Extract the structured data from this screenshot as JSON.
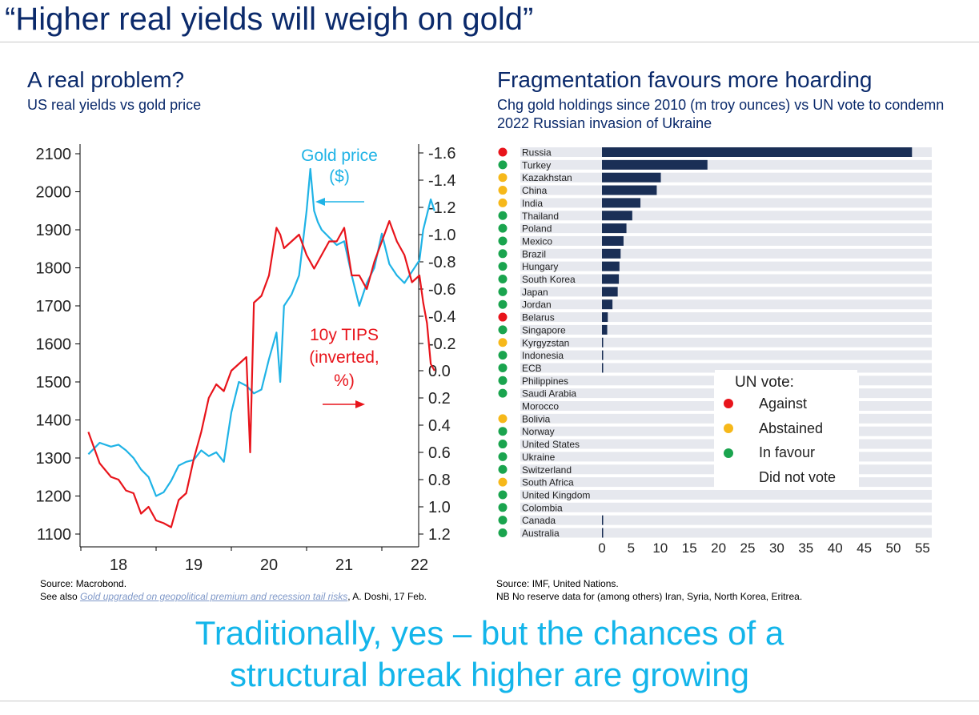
{
  "title": "“Higher real yields will weigh on gold”",
  "left": {
    "heading": "A real problem?",
    "subheading": "US real yields vs gold price",
    "source_line1": "Source: Macrobond.",
    "source_see_also": "See also ",
    "source_link": "Gold upgraded on geopolitical premium and recession tail risks",
    "source_tail": ", A. Doshi, 17 Feb."
  },
  "right": {
    "heading": "Fragmentation favours more hoarding",
    "subheading": "Chg gold holdings since 2010 (m troy ounces) vs UN vote to condemn 2022 Russian invasion of Ukraine",
    "source_line1": "Source: IMF, United Nations.",
    "source_line2": "NB No reserve data for (among others) Iran, Syria, North Korea, Eritrea."
  },
  "bottom_line1": "Traditionally, yes – but the chances of a",
  "bottom_line2": "structural break higher are growing",
  "colors": {
    "gold_line": "#1fb3e6",
    "tips_line": "#e8141b",
    "bar": "#1a2f56",
    "track": "#e6e8ee",
    "against": "#e8141b",
    "abstained": "#f6b81a",
    "in_favour": "#1aa44e"
  },
  "chart_data": [
    {
      "type": "line",
      "title": "A real problem?",
      "subtitle": "US real yields vs gold price",
      "x_ticks": [
        "18",
        "19",
        "20",
        "21",
        "22"
      ],
      "left_axis": {
        "ticks": [
          1100,
          1200,
          1300,
          1400,
          1500,
          1600,
          1700,
          1800,
          1900,
          2000,
          2100
        ],
        "ylim": [
          1080,
          2110
        ]
      },
      "right_axis": {
        "ticks": [
          "-1.6",
          "-1.4",
          "-1.2",
          "-1.0",
          "-0.8",
          "-0.6",
          "-0.4",
          "-0.2",
          "0.0",
          "0.2",
          "0.4",
          "0.6",
          "0.8",
          "1.0",
          "1.2"
        ],
        "inverted": true
      },
      "annotations": {
        "gold_label_1": "Gold price",
        "gold_label_2": "($)",
        "tips_label_1": "10y TIPS",
        "tips_label_2": "(inverted,",
        "tips_label_3": "%)"
      },
      "series": [
        {
          "name": "Gold price ($)",
          "axis": "left",
          "x": [
            2017.6,
            2017.75,
            2017.9,
            2018.0,
            2018.1,
            2018.2,
            2018.3,
            2018.4,
            2018.5,
            2018.6,
            2018.7,
            2018.8,
            2018.9,
            2019.0,
            2019.1,
            2019.2,
            2019.3,
            2019.4,
            2019.5,
            2019.6,
            2019.7,
            2019.8,
            2019.9,
            2020.0,
            2020.1,
            2020.15,
            2020.2,
            2020.3,
            2020.4,
            2020.5,
            2020.55,
            2020.6,
            2020.65,
            2020.7,
            2020.8,
            2020.9,
            2021.0,
            2021.1,
            2021.2,
            2021.3,
            2021.4,
            2021.5,
            2021.6,
            2021.7,
            2021.8,
            2021.9,
            2022.0,
            2022.05,
            2022.1,
            2022.15,
            2022.2
          ],
          "values": [
            1310,
            1340,
            1330,
            1335,
            1320,
            1300,
            1270,
            1250,
            1200,
            1210,
            1240,
            1280,
            1290,
            1295,
            1320,
            1305,
            1315,
            1290,
            1420,
            1500,
            1490,
            1470,
            1480,
            1560,
            1630,
            1500,
            1700,
            1730,
            1780,
            1950,
            2060,
            1950,
            1920,
            1900,
            1880,
            1860,
            1870,
            1780,
            1700,
            1760,
            1800,
            1890,
            1810,
            1780,
            1760,
            1790,
            1820,
            1900,
            1940,
            1980,
            1950
          ]
        },
        {
          "name": "10y TIPS (inverted, %)",
          "axis": "right",
          "x": [
            2017.6,
            2017.75,
            2017.9,
            2018.0,
            2018.1,
            2018.2,
            2018.3,
            2018.4,
            2018.5,
            2018.6,
            2018.7,
            2018.8,
            2018.9,
            2019.0,
            2019.1,
            2019.2,
            2019.3,
            2019.4,
            2019.5,
            2019.6,
            2019.7,
            2019.75,
            2019.8,
            2019.9,
            2020.0,
            2020.1,
            2020.15,
            2020.2,
            2020.3,
            2020.4,
            2020.5,
            2020.6,
            2020.7,
            2020.8,
            2020.9,
            2021.0,
            2021.1,
            2021.2,
            2021.3,
            2021.4,
            2021.5,
            2021.6,
            2021.7,
            2021.8,
            2021.9,
            2022.0,
            2022.05,
            2022.1,
            2022.15,
            2022.2
          ],
          "values": [
            0.45,
            0.68,
            0.78,
            0.8,
            0.88,
            0.9,
            1.05,
            1.0,
            1.1,
            1.12,
            1.15,
            0.95,
            0.9,
            0.65,
            0.45,
            0.2,
            0.1,
            0.15,
            0.0,
            -0.05,
            -0.1,
            0.6,
            -0.5,
            -0.55,
            -0.7,
            -1.05,
            -1.0,
            -0.9,
            -0.95,
            -1.0,
            -0.85,
            -0.75,
            -0.85,
            -0.95,
            -0.95,
            -1.05,
            -0.7,
            -0.7,
            -0.6,
            -0.8,
            -0.95,
            -1.1,
            -0.95,
            -0.85,
            -0.65,
            -0.7,
            -0.5,
            -0.35,
            -0.05,
            0.0
          ]
        }
      ]
    },
    {
      "type": "bar",
      "orientation": "horizontal",
      "title": "Fragmentation favours more hoarding",
      "subtitle": "Chg gold holdings since 2010 (m troy ounces) vs UN vote to condemn 2022 Russian invasion of Ukraine",
      "xlim": [
        0,
        56
      ],
      "x_ticks": [
        "0",
        "5",
        "10",
        "15",
        "20",
        "25",
        "30",
        "35",
        "40",
        "45",
        "50",
        "55"
      ],
      "categories": [
        "Russia",
        "Turkey",
        "Kazakhstan",
        "China",
        "India",
        "Thailand",
        "Poland",
        "Mexico",
        "Brazil",
        "Hungary",
        "South Korea",
        "Japan",
        "Jordan",
        "Belarus",
        "Singapore",
        "Kyrgyzstan",
        "Indonesia",
        "ECB",
        "Philippines",
        "Saudi Arabia",
        "Morocco",
        "Bolivia",
        "Norway",
        "United States",
        "Ukraine",
        "Switzerland",
        "South Africa",
        "United Kingdom",
        "Colombia",
        "Canada",
        "Australia"
      ],
      "values": [
        53.2,
        18.1,
        10.1,
        9.4,
        6.6,
        5.2,
        4.2,
        3.7,
        3.2,
        3.0,
        2.9,
        2.7,
        1.8,
        1.0,
        0.9,
        0.2,
        0.2,
        0.1,
        0,
        0,
        0,
        0,
        0,
        0,
        0,
        0,
        0,
        0,
        0,
        0.1,
        0.1
      ],
      "votes": [
        "against",
        "in_favour",
        "abstained",
        "abstained",
        "abstained",
        "in_favour",
        "in_favour",
        "in_favour",
        "in_favour",
        "in_favour",
        "in_favour",
        "in_favour",
        "in_favour",
        "against",
        "in_favour",
        "abstained",
        "in_favour",
        "in_favour",
        "in_favour",
        "in_favour",
        "none",
        "abstained",
        "in_favour",
        "in_favour",
        "in_favour",
        "in_favour",
        "abstained",
        "in_favour",
        "in_favour",
        "in_favour",
        "in_favour"
      ],
      "legend": {
        "title": "UN vote:",
        "against": "Against",
        "abstained": "Abstained",
        "in_favour": "In favour",
        "none": "Did not vote"
      }
    }
  ]
}
